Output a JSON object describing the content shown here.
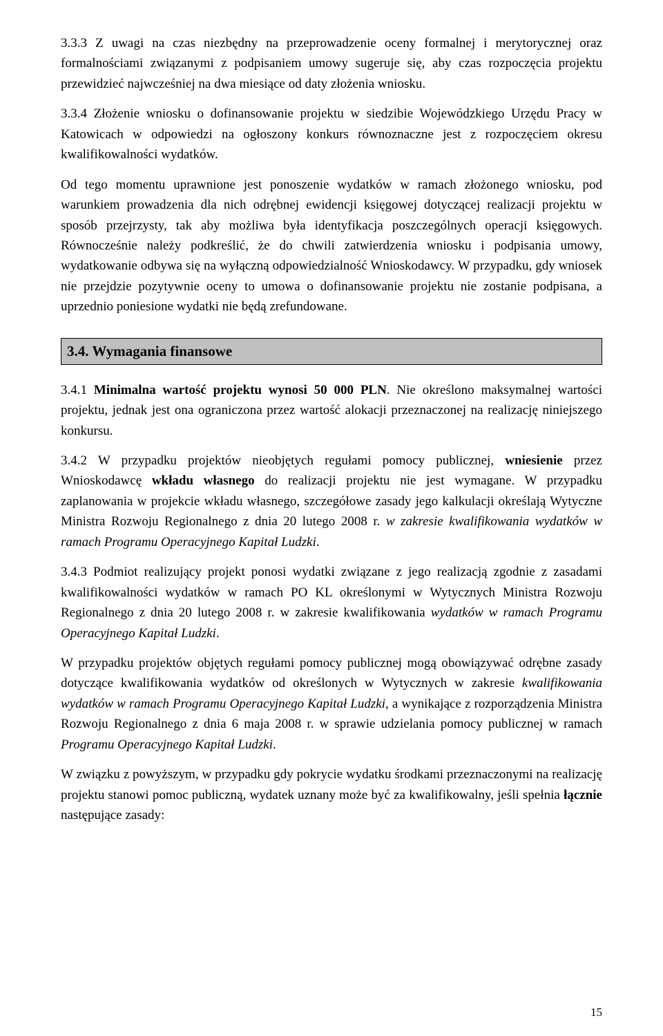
{
  "paragraphs": {
    "p1": "3.3.3 Z uwagi na czas niezbędny na przeprowadzenie oceny formalnej i merytorycznej oraz formalnościami związanymi z podpisaniem umowy sugeruje się, aby czas rozpoczęcia projektu przewidzieć najwcześniej na dwa miesiące od daty złożenia wniosku.",
    "p2": "3.3.4 Złożenie wniosku o dofinansowanie projektu w siedzibie Wojewódzkiego Urzędu Pracy w Katowicach w odpowiedzi na ogłoszony konkurs równoznaczne jest z rozpoczęciem okresu kwalifikowalności wydatków.",
    "p3": "Od tego momentu uprawnione jest ponoszenie wydatków w ramach złożonego wniosku, pod warunkiem prowadzenia dla nich odrębnej ewidencji księgowej dotyczącej realizacji projektu w sposób przejrzysty, tak aby możliwa była identyfikacja poszczególnych operacji księgowych. Równocześnie należy podkreślić, że do chwili zatwierdzenia wniosku i podpisania umowy, wydatkowanie odbywa się na wyłączną odpowiedzialność Wnioskodawcy. W przypadku, gdy wniosek nie przejdzie pozytywnie oceny to umowa o dofinansowanie projektu nie zostanie podpisana, a uprzednio poniesione wydatki nie będą zrefundowane."
  },
  "section34": {
    "heading": "3.4. Wymagania finansowe",
    "p1a": "3.4.1 ",
    "p1b_bold": "Minimalna wartość projektu wynosi 50 000 PLN",
    "p1c": ". Nie określono maksymalnej wartości projektu, jednak jest ona ograniczona przez wartość alokacji przeznaczonej na realizację niniejszego konkursu.",
    "p2a": "3.4.2 W przypadku projektów nieobjętych regułami pomocy publicznej, ",
    "p2b_bold": "wniesienie",
    "p2c": " przez Wnioskodawcę ",
    "p2d_bold": "wkładu własnego",
    "p2e": " do realizacji projektu nie jest wymagane. W przypadku zaplanowania w projekcie wkładu własnego, szczegółowe zasady jego kalkulacji określają Wytyczne Ministra Rozwoju Regionalnego z dnia 20 lutego 2008 r. ",
    "p2f_italic": "w zakresie kwalifikowania wydatków w ramach Programu Operacyjnego Kapitał Ludzki",
    "p2g": ".",
    "p3a": "3.4.3 Podmiot realizujący projekt ponosi wydatki związane z jego realizacją zgodnie z zasadami kwalifikowalności wydatków w ramach PO KL określonymi w Wytycznych Ministra Rozwoju Regionalnego z dnia 20 lutego 2008 r. w zakresie kwalifikowania ",
    "p3b_italic": "wydatków w ramach Programu Operacyjnego Kapitał Ludzki",
    "p3c": ".",
    "p4a": "W przypadku projektów objętych regułami pomocy publicznej mogą obowiązywać odrębne zasady dotyczące kwalifikowania wydatków od określonych w Wytycznych w zakresie ",
    "p4b_italic": "kwalifikowania wydatków w ramach Programu Operacyjnego Kapitał Ludzki,",
    "p4c": " a wynikające z rozporządzenia Ministra Rozwoju Regionalnego z dnia 6 maja 2008 r. w sprawie udzielania pomocy publicznej w ramach ",
    "p4d_italic": "Programu Operacyjnego Kapitał Ludzki",
    "p4e": ".",
    "p5a": "W związku z powyższym, w przypadku gdy pokrycie wydatku środkami przeznaczonymi na realizację projektu stanowi pomoc publiczną, wydatek uznany może być za kwalifikowalny, jeśli spełnia ",
    "p5b_bold": "łącznie",
    "p5c": " następujące zasady:"
  },
  "pageNumber": "15"
}
